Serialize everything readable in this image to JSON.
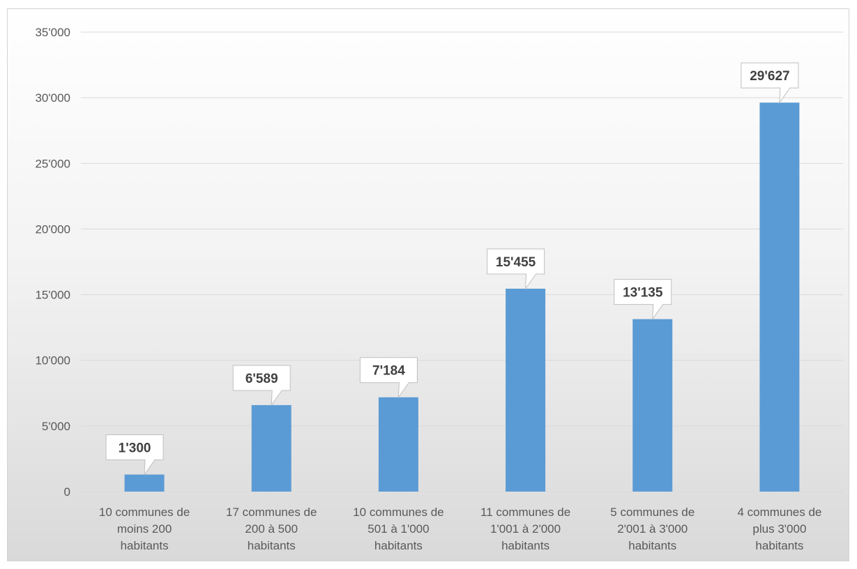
{
  "chart_data": {
    "type": "bar",
    "categories": [
      [
        "10 communes de",
        "moins 200",
        "habitants"
      ],
      [
        "17 communes de",
        "200 à 500",
        "habitants"
      ],
      [
        "10 communes de",
        "501 à 1'000",
        "habitants"
      ],
      [
        "11 communes de",
        "1'001 à 2'000",
        "habitants"
      ],
      [
        "5 communes de",
        "2'001 à 3'000",
        "habitants"
      ],
      [
        "4 communes de",
        "plus 3'000",
        "habitants"
      ]
    ],
    "values": [
      1300,
      6589,
      7184,
      15455,
      13135,
      29627
    ],
    "data_labels": [
      "1'300",
      "6'589",
      "7'184",
      "15'455",
      "13'135",
      "29'627"
    ],
    "y_ticks": [
      {
        "value": 0,
        "label": "0"
      },
      {
        "value": 5000,
        "label": "5'000"
      },
      {
        "value": 10000,
        "label": "10'000"
      },
      {
        "value": 15000,
        "label": "15'000"
      },
      {
        "value": 20000,
        "label": "20'000"
      },
      {
        "value": 25000,
        "label": "25'000"
      },
      {
        "value": 30000,
        "label": "30'000"
      },
      {
        "value": 35000,
        "label": "35'000"
      }
    ],
    "ylim": [
      0,
      35000
    ],
    "grid": true,
    "legend": "none",
    "colors": {
      "bar": "#5b9bd5"
    }
  }
}
